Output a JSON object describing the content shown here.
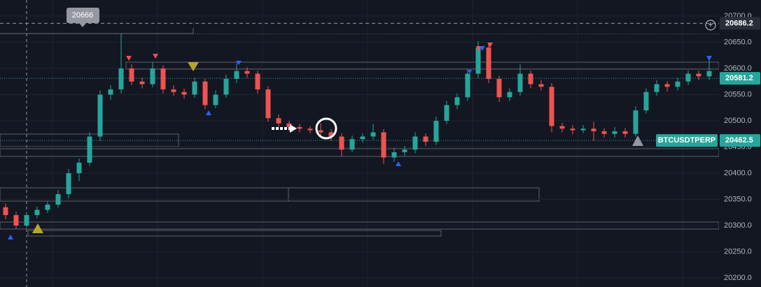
{
  "chart_data": {
    "type": "candlestick",
    "candles": [
      [
        20335,
        20342,
        20312,
        20320
      ],
      [
        20320,
        20326,
        20294,
        20300
      ],
      [
        20300,
        20326,
        20296,
        20320
      ],
      [
        20320,
        20336,
        20314,
        20330
      ],
      [
        20330,
        20346,
        20324,
        20340
      ],
      [
        20340,
        20368,
        20334,
        20360
      ],
      [
        20360,
        20408,
        20352,
        20400
      ],
      [
        20400,
        20428,
        20385,
        20420
      ],
      [
        20420,
        20478,
        20414,
        20470
      ],
      [
        20470,
        20558,
        20462,
        20550
      ],
      [
        20550,
        20568,
        20540,
        20560
      ],
      [
        20560,
        20666,
        20552,
        20600
      ],
      [
        20600,
        20608,
        20568,
        20575
      ],
      [
        20575,
        20582,
        20562,
        20570
      ],
      [
        20570,
        20612,
        20564,
        20600
      ],
      [
        20600,
        20606,
        20552,
        20560
      ],
      [
        20560,
        20568,
        20548,
        20555
      ],
      [
        20555,
        20562,
        20542,
        20550
      ],
      [
        20550,
        20582,
        20544,
        20575
      ],
      [
        20575,
        20580,
        20522,
        20530
      ],
      [
        20530,
        20558,
        20524,
        20550
      ],
      [
        20550,
        20588,
        20544,
        20580
      ],
      [
        20580,
        20610,
        20572,
        20595
      ],
      [
        20595,
        20602,
        20582,
        20590
      ],
      [
        20590,
        20596,
        20552,
        20560
      ],
      [
        20560,
        20566,
        20498,
        20505
      ],
      [
        20505,
        20512,
        20488,
        20495
      ],
      [
        20495,
        20500,
        20480,
        20488
      ],
      [
        20488,
        20494,
        20478,
        20485
      ],
      [
        20485,
        20490,
        20476,
        20482
      ],
      [
        20482,
        20496,
        20472,
        20478
      ],
      [
        20478,
        20484,
        20462,
        20470
      ],
      [
        20470,
        20476,
        20432,
        20445
      ],
      [
        20445,
        20472,
        20440,
        20465
      ],
      [
        20465,
        20476,
        20458,
        20470
      ],
      [
        20470,
        20494,
        20464,
        20478
      ],
      [
        20478,
        20484,
        20418,
        20430
      ],
      [
        20430,
        20448,
        20422,
        20440
      ],
      [
        20440,
        20452,
        20432,
        20445
      ],
      [
        20445,
        20478,
        20438,
        20470
      ],
      [
        20470,
        20476,
        20452,
        20460
      ],
      [
        20460,
        20508,
        20454,
        20500
      ],
      [
        20500,
        20538,
        20494,
        20530
      ],
      [
        20530,
        20552,
        20522,
        20545
      ],
      [
        20545,
        20598,
        20538,
        20590
      ],
      [
        20590,
        20652,
        20582,
        20640
      ],
      [
        20640,
        20646,
        20572,
        20580
      ],
      [
        20580,
        20586,
        20536,
        20545
      ],
      [
        20545,
        20562,
        20538,
        20555
      ],
      [
        20555,
        20608,
        20548,
        20590
      ],
      [
        20590,
        20596,
        20562,
        20570
      ],
      [
        20570,
        20578,
        20558,
        20565
      ],
      [
        20565,
        20572,
        20478,
        20490
      ],
      [
        20490,
        20496,
        20478,
        20485
      ],
      [
        20485,
        20492,
        20474,
        20482
      ],
      [
        20482,
        20492,
        20476,
        20485
      ],
      [
        20485,
        20498,
        20462,
        20480
      ],
      [
        20480,
        20486,
        20468,
        20475
      ],
      [
        20475,
        20488,
        20468,
        20480
      ],
      [
        20480,
        20486,
        20468,
        20475
      ],
      [
        20475,
        20528,
        20470,
        20520
      ],
      [
        20520,
        20562,
        20514,
        20555
      ],
      [
        20555,
        20578,
        20548,
        20570
      ],
      [
        20570,
        20576,
        20556,
        20565
      ],
      [
        20565,
        20582,
        20558,
        20575
      ],
      [
        20575,
        20596,
        20568,
        20590
      ],
      [
        20590,
        20596,
        20578,
        20585
      ],
      [
        20585,
        20618,
        20578,
        20595
      ]
    ],
    "up_color": "#26a69a",
    "down_color": "#ef5350",
    "ylim": [
      20182.7,
      20730.7
    ],
    "yticks": [
      {
        "value": 20200,
        "label": "20200.0"
      },
      {
        "value": 20250,
        "label": "20250.0"
      },
      {
        "value": 20300,
        "label": "20300.0"
      },
      {
        "value": 20350,
        "label": "20350.0"
      },
      {
        "value": 20400,
        "label": "20400.0"
      },
      {
        "value": 20450,
        "label": "20450.0"
      },
      {
        "value": 20500,
        "label": "20500.0"
      },
      {
        "value": 20550,
        "label": "20550.0"
      },
      {
        "value": 20600,
        "label": "20600.0"
      },
      {
        "value": 20650,
        "label": "20650.0"
      },
      {
        "value": 20700,
        "label": "20700.0"
      }
    ],
    "grid": true,
    "tooltip_price": 20666,
    "crosshair_price": 20686.2,
    "last_price": 20581.2,
    "mark_price": 20462.5,
    "symbol": "BTCUSDTPERP"
  }
}
